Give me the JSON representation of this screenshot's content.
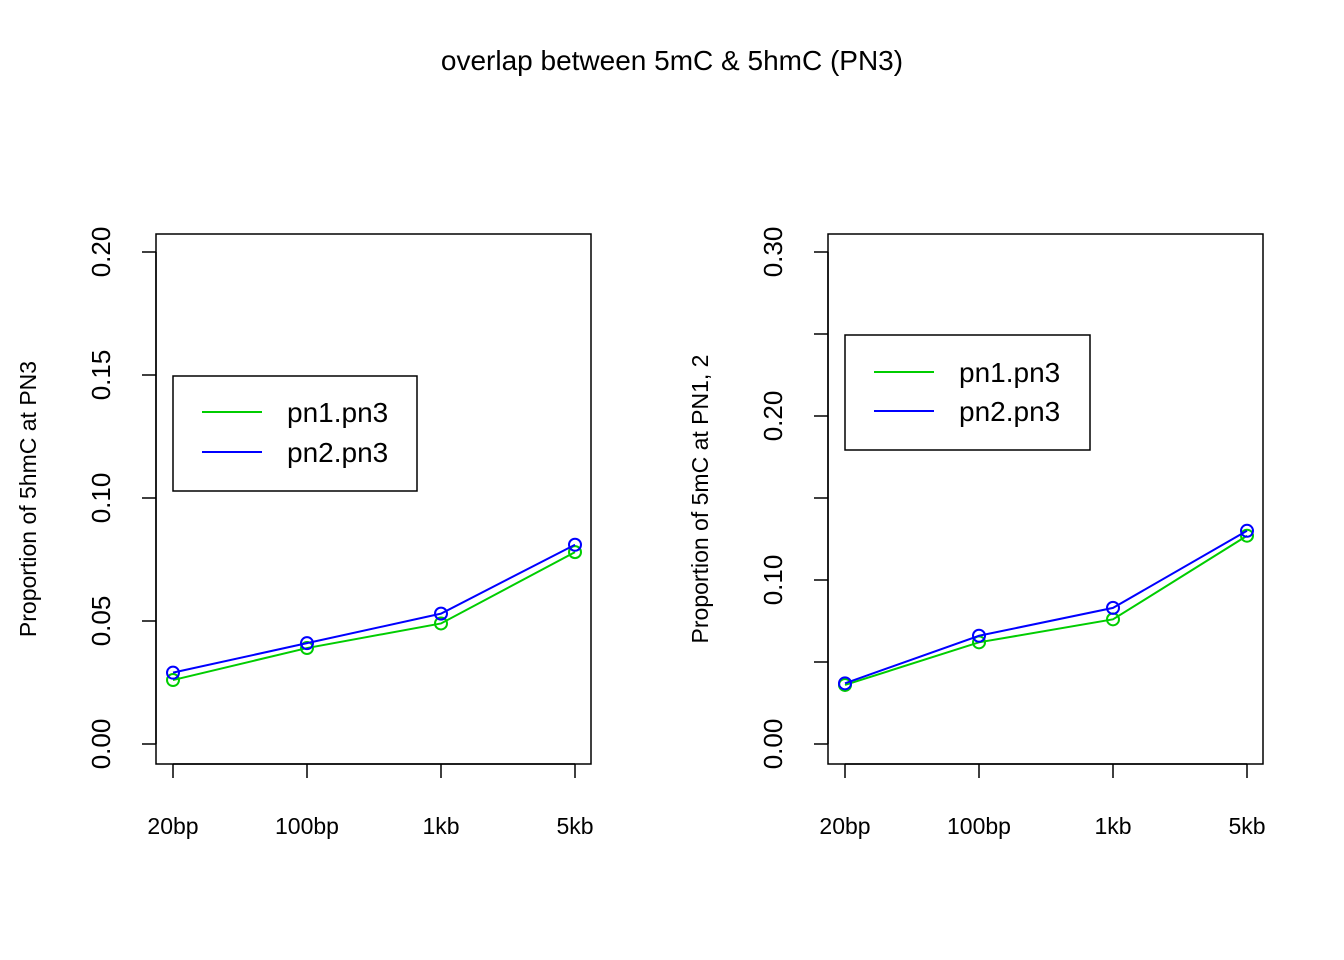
{
  "title": "overlap between 5mC & 5hmC (PN3)",
  "colors": {
    "pn1.pn3": "#00cd00",
    "pn2.pn3": "#0000ff",
    "axis": "#000000"
  },
  "chart_data": [
    {
      "type": "line",
      "categories": [
        "20bp",
        "100bp",
        "1kb",
        "5kb"
      ],
      "ylabel": "Proportion of 5hmC at PN3",
      "ylim": [
        0,
        0.2
      ],
      "yticks": [
        0.0,
        0.05,
        0.1,
        0.15,
        0.2
      ],
      "ytick_labels": [
        "0.00",
        "0.05",
        "0.10",
        "0.15",
        "0.20"
      ],
      "legend_position": "upper-left",
      "series": [
        {
          "name": "pn1.pn3",
          "color": "#00cd00",
          "values": [
            0.026,
            0.039,
            0.049,
            0.078
          ]
        },
        {
          "name": "pn2.pn3",
          "color": "#0000ff",
          "values": [
            0.029,
            0.041,
            0.053,
            0.081
          ]
        }
      ]
    },
    {
      "type": "line",
      "categories": [
        "20bp",
        "100bp",
        "1kb",
        "5kb"
      ],
      "ylabel": "Proportion of 5mC at PN1, 2",
      "ylim": [
        0,
        0.3
      ],
      "yticks": [
        0.0,
        0.05,
        0.1,
        0.15,
        0.2,
        0.25,
        0.3
      ],
      "ytick_labels": [
        "0.00",
        "",
        "0.10",
        "",
        "0.20",
        "",
        "0.30"
      ],
      "legend_position": "upper-left",
      "series": [
        {
          "name": "pn1.pn3",
          "color": "#00cd00",
          "values": [
            0.036,
            0.062,
            0.076,
            0.127
          ]
        },
        {
          "name": "pn2.pn3",
          "color": "#0000ff",
          "values": [
            0.037,
            0.066,
            0.083,
            0.13
          ]
        }
      ]
    }
  ]
}
